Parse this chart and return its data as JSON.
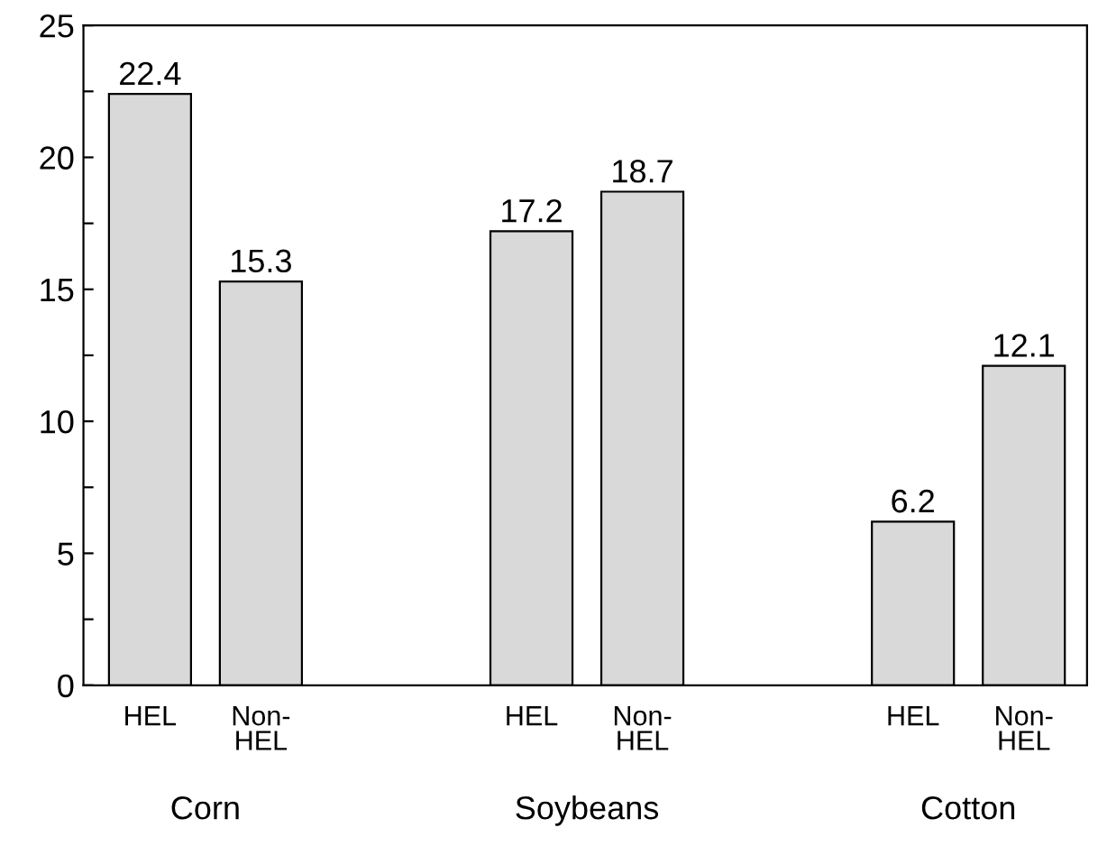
{
  "chart_data": {
    "type": "bar",
    "categories": [
      "HEL",
      "Non-\nHEL",
      "HEL",
      "Non-\nHEL",
      "HEL",
      "Non-\nHEL"
    ],
    "values": [
      22.4,
      15.3,
      17.2,
      18.7,
      6.2,
      12.1
    ],
    "color": "#d9d9d9",
    "data_labels": true,
    "ylim": [
      0,
      25
    ],
    "yticks": [
      0,
      {
        "value": 2.5,
        "label": null
      },
      5,
      {
        "value": 7.5,
        "label": null
      },
      10,
      {
        "value": 12.5,
        "label": null
      },
      15,
      {
        "value": 17.5,
        "label": null
      },
      20,
      {
        "value": 22.5,
        "label": null
      },
      25
    ],
    "annotations": [
      "Corn",
      "Soybeans",
      "Cotton"
    ],
    "grid": false,
    "legend": false
  }
}
